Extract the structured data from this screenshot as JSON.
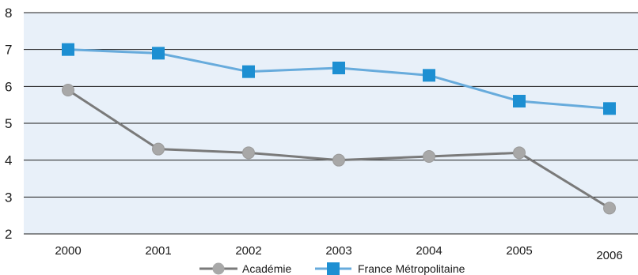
{
  "chart_data": {
    "type": "line",
    "categories": [
      "2000",
      "2001",
      "2002",
      "2003",
      "2004",
      "2005",
      "2006"
    ],
    "ylim": [
      2,
      8
    ],
    "yticks": [
      2,
      3,
      4,
      5,
      6,
      7,
      8
    ],
    "grid": true,
    "legend_position": "bottom",
    "series": [
      {
        "name": "Académie",
        "color": "#7a7a7a",
        "marker": "circle",
        "values": [
          5.9,
          4.3,
          4.2,
          4.0,
          4.1,
          4.2,
          2.7
        ]
      },
      {
        "name": "France Métropolitaine",
        "color": "#67abdc",
        "marker": "square",
        "values": [
          7.0,
          6.9,
          6.4,
          6.5,
          6.3,
          5.6,
          5.4
        ]
      }
    ],
    "colors": {
      "plot_background": "#e8f0f9",
      "gridline": "#1c1c1c",
      "marker_fill_circle": "#a8a8a8",
      "marker_fill_square": "#1d8fd2"
    }
  }
}
